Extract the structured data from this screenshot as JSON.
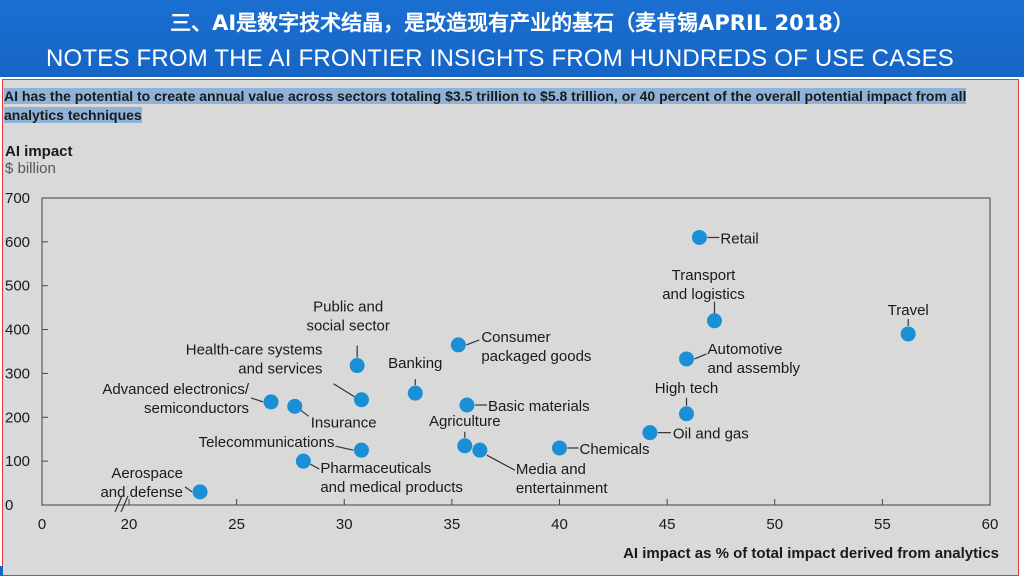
{
  "header": {
    "title_cn": "三、AI是数字技术结晶，是改造现有产业的基石（麦肯锡APRIL 2018）",
    "title_en": "NOTES FROM THE AI FRONTIER INSIGHTS FROM HUNDREDS OF USE CASES"
  },
  "colors": {
    "header_bg": "#1565c6",
    "point": "#1a8fd6",
    "highlight": "#8fb2d9",
    "panel_border": "#e23a3a"
  },
  "chart_data": {
    "type": "scatter",
    "title": "AI has the potential to create annual value across sectors totaling $3.5 trillion to $5.8 trillion, or 40 percent of the overall potential impact from all analytics techniques",
    "ylabel": "AI impact",
    "yunit": "$ billion",
    "xlabel": "AI impact as % of total impact derived from analytics",
    "xlim": [
      15,
      60
    ],
    "ylim": [
      0,
      700
    ],
    "x_axis_break": true,
    "xticks": [
      "0",
      "20",
      "25",
      "30",
      "35",
      "40",
      "45",
      "50",
      "55",
      "60"
    ],
    "yticks": [
      "0",
      "100",
      "200",
      "300",
      "400",
      "500",
      "600",
      "700"
    ],
    "grid": false,
    "points": [
      {
        "label": "Retail",
        "x": 46.5,
        "y": 610
      },
      {
        "label": "Transport and logistics",
        "x": 47.2,
        "y": 420
      },
      {
        "label": "Travel",
        "x": 56.2,
        "y": 390
      },
      {
        "label": "Automotive and assembly",
        "x": 45.9,
        "y": 333
      },
      {
        "label": "High tech",
        "x": 45.9,
        "y": 208
      },
      {
        "label": "Oil and gas",
        "x": 44.2,
        "y": 165
      },
      {
        "label": "Consumer packaged goods",
        "x": 35.3,
        "y": 365
      },
      {
        "label": "Public and social sector",
        "x": 30.6,
        "y": 318
      },
      {
        "label": "Banking",
        "x": 33.3,
        "y": 255
      },
      {
        "label": "Health-care systems and services",
        "x": 30.8,
        "y": 240
      },
      {
        "label": "Basic materials",
        "x": 35.7,
        "y": 228
      },
      {
        "label": "Advanced electronics/ semiconductors",
        "x": 26.6,
        "y": 235
      },
      {
        "label": "Insurance",
        "x": 27.7,
        "y": 225
      },
      {
        "label": "Agriculture",
        "x": 35.6,
        "y": 135
      },
      {
        "label": "Media and entertainment",
        "x": 36.3,
        "y": 125
      },
      {
        "label": "Chemicals",
        "x": 40.0,
        "y": 130
      },
      {
        "label": "Telecommunications",
        "x": 30.8,
        "y": 125
      },
      {
        "label": "Pharmaceuticals and medical products",
        "x": 28.1,
        "y": 100
      },
      {
        "label": "Aerospace and defense",
        "x": 23.3,
        "y": 30
      }
    ]
  }
}
